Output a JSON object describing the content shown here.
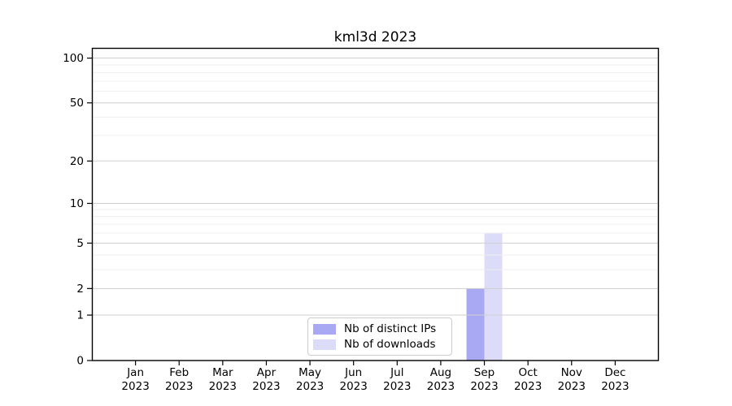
{
  "title": "kml3d 2023",
  "chart_data": {
    "type": "bar",
    "title": "kml3d 2023",
    "categories": [
      "Jan 2023",
      "Feb 2023",
      "Mar 2023",
      "Apr 2023",
      "May 2023",
      "Jun 2023",
      "Jul 2023",
      "Aug 2023",
      "Sep 2023",
      "Oct 2023",
      "Nov 2023",
      "Dec 2023"
    ],
    "series": [
      {
        "name": "Nb of distinct IPs",
        "color": "#a8a9f2",
        "values": [
          0,
          0,
          0,
          0,
          0,
          0,
          0,
          0,
          2,
          0,
          0,
          0
        ]
      },
      {
        "name": "Nb of downloads",
        "color": "#dcdcf8",
        "values": [
          0,
          0,
          0,
          0,
          0,
          0,
          0,
          0,
          6,
          0,
          0,
          0
        ]
      }
    ],
    "xlabel": "",
    "ylabel": "",
    "yscale": "log1p",
    "ylim": [
      0,
      117
    ],
    "yticks_major": [
      0,
      1,
      2,
      5,
      10,
      20,
      50,
      100
    ],
    "yticks_minor": [
      3,
      4,
      6,
      7,
      8,
      9,
      30,
      40,
      60,
      70,
      80,
      90
    ],
    "grid": true,
    "legend_position": "lower center"
  },
  "colors": {
    "axis": "#000000",
    "grid_major": "#cfcfcf",
    "grid_minor": "#efefef",
    "text": "#000000",
    "background": "#ffffff"
  }
}
